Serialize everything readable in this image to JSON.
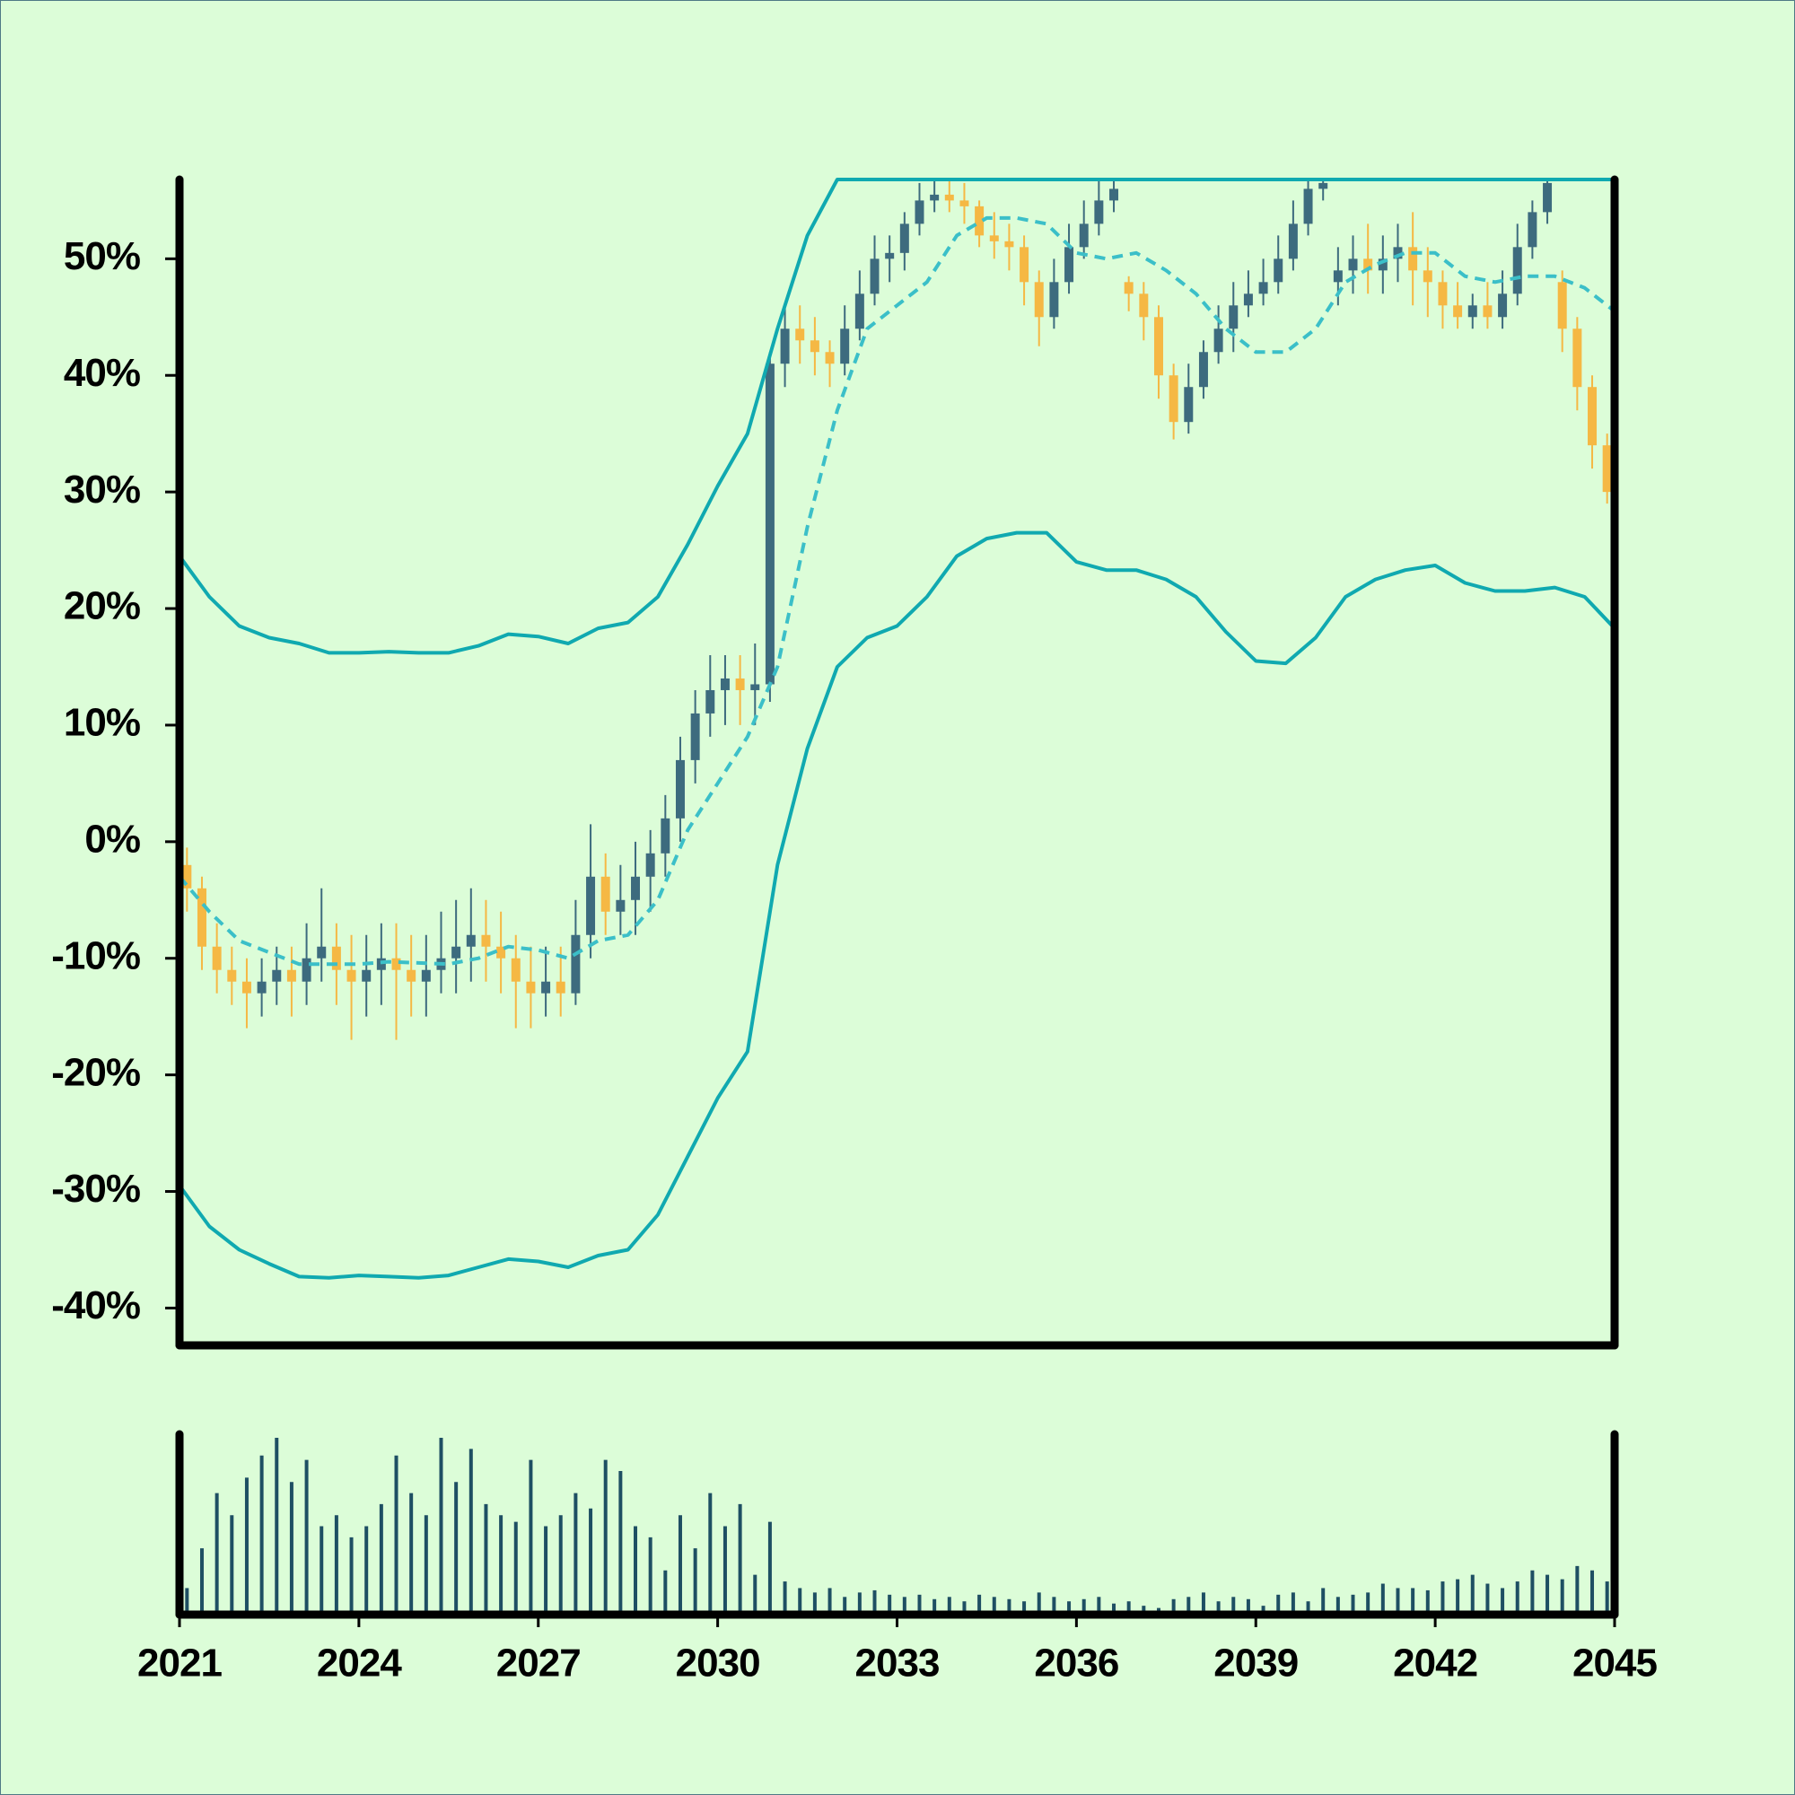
{
  "chart_data": {
    "type": "candlestick",
    "x": [
      2021.125,
      2021.375,
      2021.625,
      2021.875,
      2022.125,
      2022.375,
      2022.625,
      2022.875,
      2023.125,
      2023.375,
      2023.625,
      2023.875,
      2024.125,
      2024.375,
      2024.625,
      2024.875,
      2025.125,
      2025.375,
      2025.625,
      2025.875,
      2026.125,
      2026.375,
      2026.625,
      2026.875,
      2027.125,
      2027.375,
      2027.625,
      2027.875,
      2028.125,
      2028.375,
      2028.625,
      2028.875,
      2029.125,
      2029.375,
      2029.625,
      2029.875,
      2030.125,
      2030.375,
      2030.625,
      2030.875,
      2031.125,
      2031.375,
      2031.625,
      2031.875,
      2032.125,
      2032.375,
      2032.625,
      2032.875,
      2033.125,
      2033.375,
      2033.625,
      2033.875,
      2034.125,
      2034.375,
      2034.625,
      2034.875,
      2035.125,
      2035.375,
      2035.625,
      2035.875,
      2036.125,
      2036.375,
      2036.625,
      2036.875,
      2037.125,
      2037.375,
      2037.625,
      2037.875,
      2038.125,
      2038.375,
      2038.625,
      2038.875,
      2039.125,
      2039.375,
      2039.625,
      2039.875,
      2040.125,
      2040.375,
      2040.625,
      2040.875,
      2041.125,
      2041.375,
      2041.625,
      2041.875,
      2042.125,
      2042.375,
      2042.625,
      2042.875,
      2043.125,
      2043.375,
      2043.625,
      2043.875,
      2044.125,
      2044.375,
      2044.625,
      2044.875
    ],
    "open": [
      -2,
      -4,
      -9,
      -11,
      -12,
      -13,
      -12,
      -11,
      -12,
      -10,
      -9,
      -11,
      -12,
      -11,
      -10,
      -11,
      -12,
      -11,
      -10,
      -9,
      -8,
      -9,
      -10,
      -12,
      -13,
      -12,
      -13,
      -8,
      -3,
      -6,
      -5,
      -3,
      -1,
      2,
      7,
      11,
      13,
      14,
      13,
      13.5,
      41,
      44,
      43,
      42,
      41,
      44,
      47,
      50,
      50.5,
      53,
      55,
      55.5,
      55,
      54.5,
      52,
      51.5,
      51,
      48,
      45,
      48,
      51,
      53,
      55,
      48,
      47,
      45,
      40,
      36,
      39,
      42,
      44,
      46,
      47,
      48,
      50,
      53,
      56,
      48,
      49,
      50,
      49,
      50,
      51,
      49,
      48,
      46,
      45,
      46,
      45,
      47,
      51,
      54,
      48,
      44,
      39,
      34
    ],
    "high": [
      -0.5,
      -3,
      -7,
      -9,
      -10,
      -10,
      -9,
      -9,
      -7,
      -4,
      -7,
      -8,
      -8,
      -7,
      -7,
      -8,
      -8,
      -6,
      -5,
      -4,
      -5,
      -6,
      -8,
      -9,
      -9,
      -9,
      -5,
      1.5,
      -1,
      -2,
      0,
      1,
      4,
      9,
      13,
      16,
      16,
      16,
      17,
      42,
      46,
      46,
      45,
      43,
      46,
      49,
      52,
      52,
      54,
      56.5,
      56.8,
      56.8,
      56.5,
      55,
      54,
      53,
      52,
      49,
      50,
      53,
      55,
      56.8,
      56.8,
      48.5,
      48,
      46,
      41,
      41,
      43,
      46,
      48,
      49,
      50,
      52,
      55,
      56.8,
      56.8,
      51,
      52,
      53,
      52,
      53,
      54,
      51,
      49,
      48,
      47,
      48,
      49,
      53,
      55,
      56.8,
      49,
      45,
      40,
      35
    ],
    "low": [
      -6,
      -11,
      -13,
      -14,
      -16,
      -15,
      -14,
      -15,
      -14,
      -12,
      -14,
      -17,
      -15,
      -14,
      -17,
      -15,
      -15,
      -13,
      -13,
      -12,
      -12,
      -13,
      -16,
      -16,
      -15,
      -15,
      -14,
      -10,
      -8,
      -8,
      -8,
      -6,
      -3,
      0,
      5,
      9,
      10,
      10,
      10,
      12,
      39,
      41,
      40,
      39,
      40,
      43,
      46,
      48,
      49,
      52,
      54,
      54,
      53,
      51,
      50,
      49,
      46,
      42.5,
      44,
      47,
      50,
      52,
      54,
      45.5,
      43,
      38,
      34.5,
      35,
      38,
      41,
      42,
      45,
      46,
      47,
      49,
      52,
      55,
      46,
      47,
      47,
      47,
      48,
      46,
      45,
      44,
      44,
      44,
      44,
      44,
      46,
      50,
      53,
      42,
      37,
      32,
      29
    ],
    "close": [
      -4,
      -9,
      -11,
      -12,
      -13,
      -12,
      -11,
      -12,
      -10,
      -9,
      -11,
      -12,
      -11,
      -10,
      -11,
      -12,
      -11,
      -10,
      -9,
      -8,
      -9,
      -10,
      -12,
      -13,
      -12,
      -13,
      -8,
      -3,
      -6,
      -5,
      -3,
      -1,
      2,
      7,
      11,
      13,
      14,
      13,
      13.5,
      41,
      44,
      43,
      42,
      41,
      44,
      47,
      50,
      50.5,
      53,
      55,
      55.5,
      55,
      54.5,
      52,
      51.5,
      51,
      48,
      45,
      48,
      51,
      53,
      55,
      56,
      47,
      45,
      40,
      36,
      39,
      42,
      44,
      46,
      47,
      48,
      50,
      53,
      56,
      56.5,
      49,
      50,
      49,
      50,
      51,
      49,
      48,
      46,
      45,
      46,
      45,
      47,
      51,
      54,
      56.5,
      44,
      39,
      34,
      30
    ],
    "up_color": "#3d6b7e",
    "down_color": "#f5b844",
    "bands": {
      "x": [
        2021,
        2021.5,
        2022,
        2022.5,
        2023,
        2023.5,
        2024,
        2024.5,
        2025,
        2025.5,
        2026,
        2026.5,
        2027,
        2027.5,
        2028,
        2028.5,
        2029,
        2029.5,
        2030,
        2030.5,
        2031,
        2031.5,
        2032,
        2032.5,
        2033,
        2033.5,
        2034,
        2034.5,
        2035,
        2035.5,
        2036,
        2036.5,
        2037,
        2037.5,
        2038,
        2038.5,
        2039,
        2039.5,
        2040,
        2040.5,
        2041,
        2041.5,
        2042,
        2042.5,
        2043,
        2043.5,
        2044,
        2044.5,
        2045
      ],
      "upper": [
        24.5,
        21,
        18.5,
        17.5,
        17,
        16.2,
        16.2,
        16.3,
        16.2,
        16.2,
        16.8,
        17.8,
        17.6,
        17,
        18.3,
        18.8,
        21,
        25.5,
        30.5,
        35,
        44,
        52,
        56.8,
        56.8,
        56.8,
        56.8,
        56.8,
        56.8,
        56.8,
        56.8,
        56.8,
        56.8,
        56.8,
        56.8,
        56.8,
        56.8,
        56.8,
        56.8,
        56.8,
        56.8,
        56.8,
        56.8,
        56.8,
        56.8,
        56.8,
        56.8,
        56.8,
        56.8,
        56.8
      ],
      "middle": [
        -3,
        -6,
        -8.5,
        -9.5,
        -10.5,
        -10.5,
        -10.5,
        -10.3,
        -10.4,
        -10.5,
        -10,
        -9,
        -9.3,
        -10,
        -8.5,
        -8,
        -5,
        1,
        5,
        9,
        15,
        27,
        37,
        44,
        46,
        48,
        52,
        53.5,
        53.5,
        53,
        50.5,
        50,
        50.5,
        49,
        47,
        44,
        42,
        42,
        44,
        48,
        49.5,
        50.5,
        50.5,
        48.5,
        48,
        48.5,
        48.5,
        47.5,
        45.5
      ],
      "lower": [
        -29.5,
        -33,
        -35,
        -36.2,
        -37.3,
        -37.4,
        -37.2,
        -37.3,
        -37.4,
        -37.2,
        -36.5,
        -35.8,
        -36,
        -36.5,
        -35.5,
        -35,
        -32,
        -27,
        -22,
        -18,
        -2,
        8,
        15,
        17.5,
        18.5,
        21,
        24.5,
        26,
        26.5,
        26.5,
        24,
        23.3,
        23.3,
        22.5,
        21,
        18,
        15.5,
        15.3,
        17.5,
        21,
        22.5,
        23.3,
        23.7,
        22.2,
        21.5,
        21.5,
        21.8,
        21,
        18.3
      ],
      "color": "#10a9b0",
      "middle_color": "#3bbfc8"
    },
    "volume": {
      "values": [
        12,
        30,
        55,
        45,
        62,
        72,
        80,
        60,
        70,
        40,
        45,
        35,
        40,
        50,
        72,
        55,
        45,
        80,
        60,
        75,
        50,
        45,
        42,
        70,
        40,
        45,
        55,
        48,
        70,
        65,
        40,
        35,
        20,
        45,
        30,
        55,
        40,
        50,
        18,
        42,
        15,
        12,
        10,
        12,
        8,
        10,
        11,
        9,
        8,
        9,
        7,
        8,
        6,
        9,
        8,
        7,
        6,
        10,
        8,
        6,
        7,
        8,
        5,
        6,
        4,
        3,
        7,
        8,
        10,
        6,
        8,
        7,
        4,
        9,
        10,
        6,
        12,
        8,
        9,
        10,
        14,
        12,
        12,
        11,
        15,
        16,
        18,
        14,
        12,
        15,
        20,
        18,
        16,
        22,
        20,
        15
      ],
      "color": "#1e4f63"
    },
    "xlim": [
      2021,
      2045
    ],
    "xticks": [
      2021,
      2024,
      2027,
      2030,
      2033,
      2036,
      2039,
      2042,
      2045
    ],
    "ylim": [
      -43.2,
      56.8
    ],
    "yticks": [
      {
        "value": -40,
        "label": "-40%"
      },
      {
        "value": -30,
        "label": "-30%"
      },
      {
        "value": -20,
        "label": "-20%"
      },
      {
        "value": -10,
        "label": "-10%"
      },
      {
        "value": 0,
        "label": "0%"
      },
      {
        "value": 10,
        "label": "10%"
      },
      {
        "value": 20,
        "label": "20%"
      },
      {
        "value": 30,
        "label": "30%"
      },
      {
        "value": 40,
        "label": "40%"
      },
      {
        "value": 50,
        "label": "50%"
      }
    ]
  }
}
